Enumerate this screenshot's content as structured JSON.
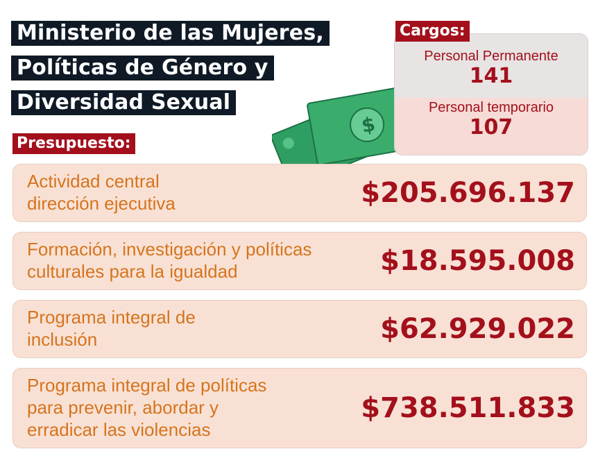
{
  "title": {
    "lines": [
      "Ministerio de las Mujeres,",
      "Políticas de Género y",
      "Diversidad Sexual"
    ]
  },
  "cargos": {
    "heading": "Cargos:",
    "items": [
      {
        "label": "Personal Permanente",
        "value": "141"
      },
      {
        "label": "Personal temporario",
        "value": "107"
      }
    ]
  },
  "presupuesto": {
    "heading": "Presupuesto:",
    "items": [
      {
        "label_lines": [
          "Actividad central",
          "dirección ejecutiva"
        ],
        "amount": "$205.696.137"
      },
      {
        "label_lines": [
          "Formación, investigación y políticas",
          "culturales para la igualdad"
        ],
        "amount": "$18.595.008"
      },
      {
        "label_lines": [
          "Programa integral de",
          "inclusión"
        ],
        "amount": "$62.929.022"
      },
      {
        "label_lines": [
          "Programa integral de políticas",
          "para prevenir, abordar y",
          "erradicar las violencias"
        ],
        "amount": "$738.511.833"
      }
    ]
  },
  "colors": {
    "title_bg": "#0f1a26",
    "accent_red": "#a3101c",
    "label_orange": "#d6741e",
    "row_bg": "#f8e1d4"
  },
  "icons": {
    "decoration": "money-bills-icon"
  }
}
